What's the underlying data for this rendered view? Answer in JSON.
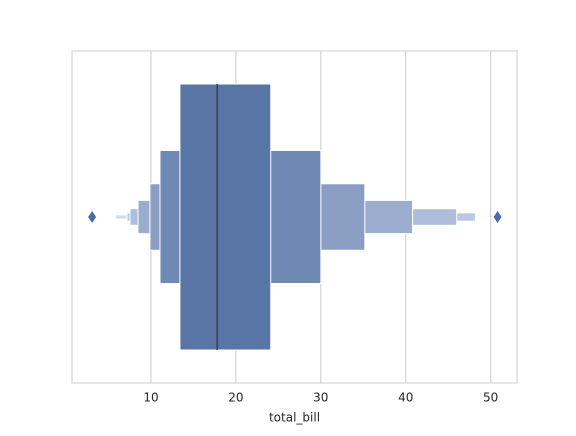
{
  "chart_data": {
    "type": "boxen",
    "xlabel": "total_bill",
    "boxes": [
      {
        "lower": 13.41,
        "upper": 24.1,
        "color": "#5875a5"
      },
      {
        "lower": 11.06,
        "upper": 30.0,
        "color": "#6f89b5"
      },
      {
        "lower": 9.88,
        "upper": 35.18,
        "color": "#8a9ec4"
      },
      {
        "lower": 8.47,
        "upper": 40.8,
        "color": "#9badcf"
      },
      {
        "lower": 7.53,
        "upper": 46.0,
        "color": "#aebdda"
      },
      {
        "lower": 7.18,
        "upper": 48.2,
        "color": "#bac7e0"
      },
      {
        "lower": 5.8,
        "upper": 48.3,
        "color": "#d2dae9"
      }
    ],
    "median": 17.8,
    "median_color": "#3a3f4a",
    "outliers": [
      3.07,
      50.81
    ],
    "outlier_color": "#4c6ca8",
    "xlim": [
      0.7,
      53.1
    ],
    "xticks": [
      10,
      20,
      30,
      40,
      50
    ],
    "grid": true
  }
}
